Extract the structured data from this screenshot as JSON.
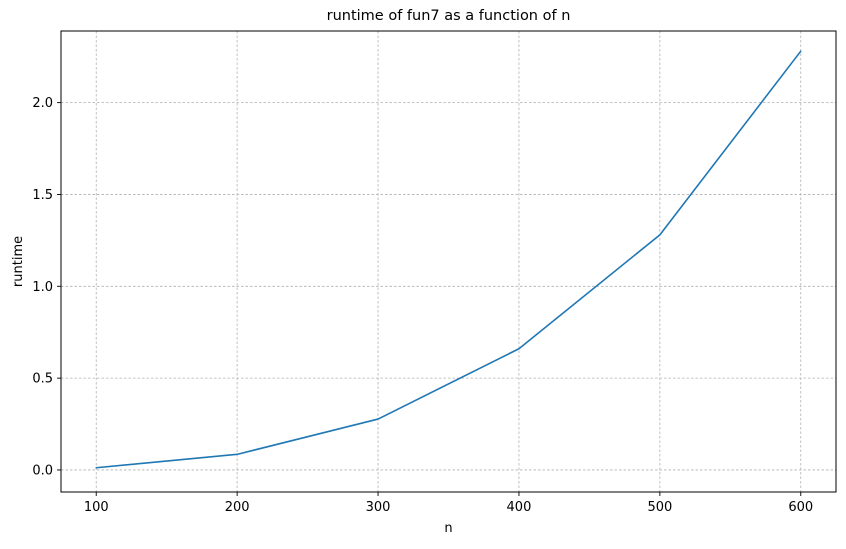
{
  "chart_data": {
    "type": "line",
    "title": "runtime of fun7 as a function of n",
    "xlabel": "n",
    "ylabel": "runtime",
    "x": [
      100,
      200,
      300,
      400,
      500,
      600
    ],
    "series": [
      {
        "values": [
          0.012,
          0.085,
          0.277,
          0.66,
          1.28,
          2.28
        ],
        "color": "#1f77b4"
      }
    ],
    "xlim": [
      75,
      625
    ],
    "ylim": [
      -0.12,
      2.39
    ],
    "xticks": [
      100,
      200,
      300,
      400,
      500,
      600
    ],
    "xtick_labels": [
      "100",
      "200",
      "300",
      "400",
      "500",
      "600"
    ],
    "yticks": [
      0.0,
      0.5,
      1.0,
      1.5,
      2.0
    ],
    "ytick_labels": [
      "0.0",
      "0.5",
      "1.0",
      "1.5",
      "2.0"
    ],
    "grid": true,
    "legend": "none"
  }
}
